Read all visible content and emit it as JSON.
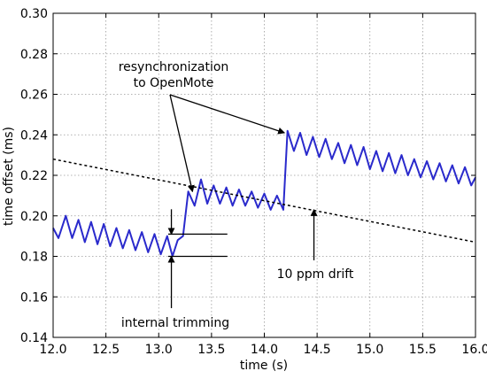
{
  "chart_data": {
    "type": "line",
    "xlabel": "time (s)",
    "ylabel": "time offset (ms)",
    "xlim": [
      12.0,
      16.0
    ],
    "ylim": [
      0.14,
      0.3
    ],
    "xticks": [
      "12.0",
      "12.5",
      "13.0",
      "13.5",
      "14.0",
      "14.5",
      "15.0",
      "15.5",
      "16.0"
    ],
    "yticks": [
      "0.14",
      "0.16",
      "0.18",
      "0.20",
      "0.22",
      "0.24",
      "0.26",
      "0.28",
      "0.30"
    ],
    "grid": "on (dotted)",
    "series": [
      {
        "style": "solid",
        "color": "#2a2acc",
        "x": [
          12.0,
          12.05,
          12.12,
          12.18,
          12.24,
          12.3,
          12.36,
          12.42,
          12.48,
          12.54,
          12.6,
          12.66,
          12.72,
          12.78,
          12.84,
          12.9,
          12.96,
          13.02,
          13.08,
          13.13,
          13.18,
          13.23,
          13.28,
          13.34,
          13.4,
          13.46,
          13.52,
          13.58,
          13.64,
          13.7,
          13.76,
          13.82,
          13.88,
          13.94,
          14.0,
          14.06,
          14.12,
          14.18,
          14.22,
          14.28,
          14.34,
          14.4,
          14.46,
          14.52,
          14.58,
          14.64,
          14.7,
          14.76,
          14.82,
          14.88,
          14.94,
          15.0,
          15.06,
          15.12,
          15.18,
          15.24,
          15.3,
          15.36,
          15.42,
          15.48,
          15.54,
          15.6,
          15.66,
          15.72,
          15.78,
          15.84,
          15.9,
          15.96,
          16.0
        ],
        "y": [
          0.194,
          0.189,
          0.2,
          0.189,
          0.198,
          0.187,
          0.197,
          0.186,
          0.196,
          0.185,
          0.194,
          0.184,
          0.193,
          0.183,
          0.192,
          0.182,
          0.191,
          0.181,
          0.19,
          0.18,
          0.188,
          0.19,
          0.212,
          0.205,
          0.218,
          0.206,
          0.215,
          0.206,
          0.214,
          0.205,
          0.213,
          0.205,
          0.212,
          0.204,
          0.211,
          0.203,
          0.21,
          0.203,
          0.242,
          0.232,
          0.241,
          0.23,
          0.239,
          0.229,
          0.238,
          0.228,
          0.236,
          0.226,
          0.235,
          0.225,
          0.234,
          0.223,
          0.232,
          0.222,
          0.231,
          0.221,
          0.23,
          0.22,
          0.228,
          0.219,
          0.227,
          0.218,
          0.226,
          0.217,
          0.225,
          0.216,
          0.224,
          0.215,
          0.219
        ]
      },
      {
        "style": "dashed",
        "color": "#000000",
        "x": [
          12.0,
          16.0
        ],
        "y": [
          0.228,
          0.187
        ]
      }
    ],
    "annotations": [
      {
        "id": "resync",
        "lines": [
          "resynchronization",
          "to OpenMote"
        ]
      },
      {
        "id": "drift",
        "text": "10 ppm drift"
      },
      {
        "id": "trim",
        "text": "internal trimming"
      }
    ]
  }
}
